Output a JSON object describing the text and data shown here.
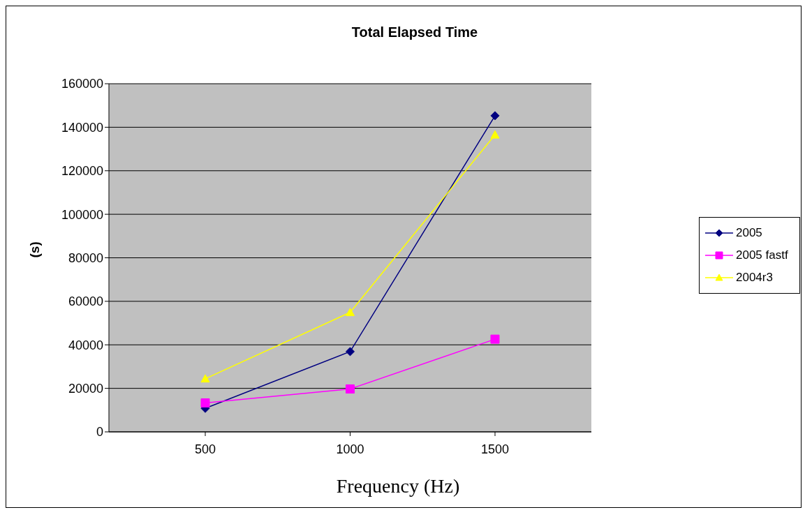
{
  "chart_data": {
    "type": "line",
    "title": "Total Elapsed Time",
    "xlabel": "Frequency (Hz)",
    "ylabel": "(s)",
    "categories": [
      "500",
      "1000",
      "1500"
    ],
    "series": [
      {
        "name": "2005",
        "color": "#000080",
        "marker": "diamond",
        "values": [
          10800,
          36900,
          145300
        ]
      },
      {
        "name": "2005 fastf",
        "color": "#ff00ff",
        "marker": "square",
        "values": [
          13300,
          19700,
          42600
        ]
      },
      {
        "name": "2004r3",
        "color": "#ffff00",
        "marker": "triangle",
        "values": [
          24400,
          54900,
          136500
        ]
      }
    ],
    "ylim": [
      0,
      160000
    ],
    "yticks": [
      0,
      20000,
      40000,
      60000,
      80000,
      100000,
      120000,
      140000,
      160000
    ],
    "grid": "y",
    "legend": "right"
  }
}
